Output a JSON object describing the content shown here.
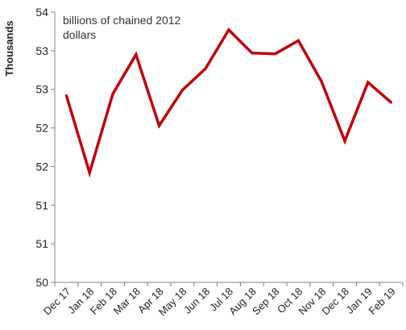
{
  "chart_data": {
    "type": "line",
    "ylabel": "Thousands",
    "annotation_line1": "billions of chained 2012",
    "annotation_line2": "dollars",
    "categories": [
      "Dec 17",
      "Jan 18",
      "Feb 18",
      "Mar 18",
      "Apr 18",
      "May 18",
      "Jun 18",
      "Jul 18",
      "Aug 18",
      "Sep 18",
      "Oct 18",
      "Nov 18",
      "Dec 18",
      "Jan 19",
      "Feb 19"
    ],
    "y_tick_labels": [
      "50",
      "51",
      "51",
      "52",
      "52",
      "53",
      "53",
      "54"
    ],
    "ylim": [
      50,
      53.5
    ],
    "grid": false,
    "series": [
      {
        "values": [
          52.42,
          51.42,
          52.44,
          52.95,
          52.03,
          52.49,
          52.77,
          53.27,
          52.97,
          52.96,
          53.13,
          52.6,
          51.83,
          52.59,
          52.33
        ],
        "color": "#c0000b"
      }
    ]
  }
}
